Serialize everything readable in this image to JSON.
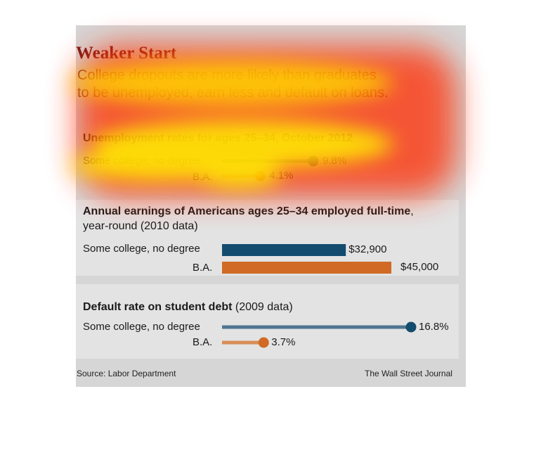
{
  "header": {
    "title": "Weaker Start",
    "subtitle_line1": "College dropouts are more likely than graduates",
    "subtitle_line2": "to be unemployed, earn less and default on loans."
  },
  "colors": {
    "title": "#7a1818",
    "dropout_primary": "#134c6e",
    "ba_primary": "#d06a25",
    "dropout_line": "#4f7590",
    "ba_line": "#d88e57",
    "panel_bg": "#e3e3e3",
    "card_bg": "#d6d6d6"
  },
  "chart_data": [
    {
      "type": "dot-bar",
      "title": "Unemployment rates for ages 25–34, October 2012",
      "categories": [
        "Some college, no degree",
        "B.A."
      ],
      "values": [
        9.8,
        4.1
      ],
      "labels": [
        "9.8%",
        "4.1%"
      ],
      "unit": "%"
    },
    {
      "type": "bar",
      "title_bold": "Annual earnings of Americans ages 25–34 employed full-time",
      "title_rest": ",",
      "title_line2": "year-round (2010 data)",
      "categories": [
        "Some college, no degree",
        "B.A."
      ],
      "values": [
        32900,
        45000
      ],
      "labels": [
        "$32,900",
        "$45,000"
      ]
    },
    {
      "type": "dot-bar",
      "title_bold": "Default rate on student debt",
      "title_rest": " (2009 data)",
      "categories": [
        "Some college, no degree",
        "B.A."
      ],
      "values": [
        16.8,
        3.7
      ],
      "labels": [
        "16.8%",
        "3.7%"
      ],
      "unit": "%"
    }
  ],
  "footer": {
    "source": "Source: Labor Department",
    "credit": "The Wall Street Journal"
  }
}
